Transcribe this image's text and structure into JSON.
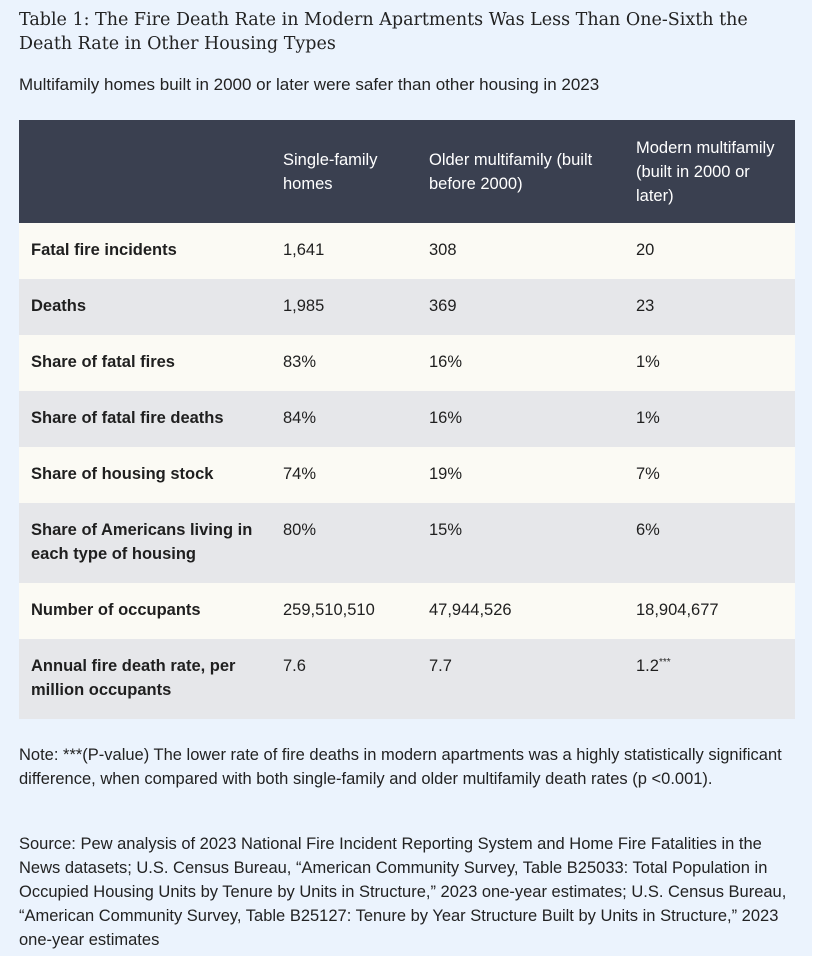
{
  "title": "Table 1: The Fire Death Rate in Modern Apartments Was Less Than One-Sixth the Death Rate in Other Housing Types",
  "subtitle": "Multifamily homes built in 2000 or later were safer than other housing in 2023",
  "table": {
    "columns": [
      "",
      "Single-family homes",
      "Older multifamily (built before 2000)",
      "Modern multifamily (built in 2000 or later)"
    ],
    "rows": [
      {
        "label": "Fatal fire incidents",
        "values": [
          "1,641",
          "308",
          "20"
        ]
      },
      {
        "label": "Deaths",
        "values": [
          "1,985",
          "369",
          "23"
        ]
      },
      {
        "label": "Share of fatal fires",
        "values": [
          "83%",
          "16%",
          "1%"
        ]
      },
      {
        "label": "Share of fatal fire deaths",
        "values": [
          "84%",
          "16%",
          "1%"
        ]
      },
      {
        "label": "Share of housing stock",
        "values": [
          "74%",
          "19%",
          "7%"
        ]
      },
      {
        "label": "Share of Americans living in each type of housing",
        "values": [
          "80%",
          "15%",
          "6%"
        ]
      },
      {
        "label": "Number of occupants",
        "values": [
          "259,510,510",
          "47,944,526",
          "18,904,677"
        ]
      },
      {
        "label": "Annual fire death rate, per million occupants",
        "values": [
          "7.6",
          "7.7",
          "1.2"
        ],
        "marker": "***"
      }
    ]
  },
  "note": "Note: ***(P-value) The lower rate of fire deaths in modern apartments was a highly statistically significant difference, when compared with both single-family and older multifamily death rates (p <0.001).",
  "source": "Source: Pew analysis of 2023 National Fire Incident Reporting System and Home Fire Fatalities in the News datasets; U.S. Census Bureau, “American Community Survey, Table B25033: Total Population in Occupied Housing Units by Tenure by Units in Structure,” 2023 one-year estimates; U.S. Census Bureau, “American Community Survey, Table B25127: Tenure by Year Structure Built by Units in Structure,” 2023 one-year estimates"
}
